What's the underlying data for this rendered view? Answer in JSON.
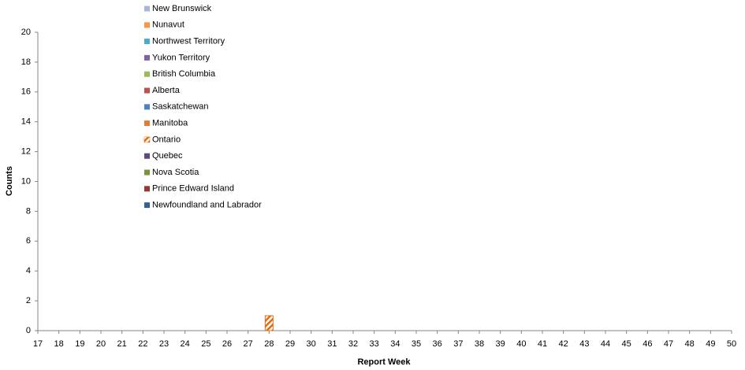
{
  "chart_data": {
    "type": "bar",
    "stacked": true,
    "x_label": "Report Week",
    "y_label": "Counts",
    "categories": [
      "17",
      "18",
      "19",
      "20",
      "21",
      "22",
      "23",
      "24",
      "25",
      "26",
      "27",
      "28",
      "29",
      "30",
      "31",
      "32",
      "33",
      "34",
      "35",
      "36",
      "37",
      "38",
      "39",
      "40",
      "41",
      "42",
      "43",
      "44",
      "45",
      "46",
      "47",
      "48",
      "49",
      "50"
    ],
    "ylim": [
      0,
      20
    ],
    "yticks": [
      0,
      2,
      4,
      6,
      8,
      10,
      12,
      14,
      16,
      18,
      20
    ],
    "grid": false,
    "series": [
      {
        "name": "New Brunswick",
        "color": "#a6b8d6",
        "values": [
          0,
          0,
          0,
          0,
          0,
          0,
          0,
          0,
          0,
          0,
          0,
          0,
          0,
          0,
          0,
          0,
          0,
          0,
          0,
          0,
          0,
          0,
          0,
          0,
          0,
          0,
          0,
          0,
          0,
          0,
          0,
          0,
          0,
          0
        ]
      },
      {
        "name": "Nunavut",
        "color": "#f79646",
        "values": [
          0,
          0,
          0,
          0,
          0,
          0,
          0,
          0,
          0,
          0,
          0,
          0,
          0,
          0,
          0,
          0,
          0,
          0,
          0,
          0,
          0,
          0,
          0,
          0,
          0,
          0,
          0,
          0,
          0,
          0,
          0,
          0,
          0,
          0
        ]
      },
      {
        "name": "Northwest Territory",
        "color": "#4bacc6",
        "values": [
          0,
          0,
          0,
          0,
          0,
          0,
          0,
          0,
          0,
          0,
          0,
          0,
          0,
          0,
          0,
          0,
          0,
          0,
          0,
          0,
          0,
          0,
          0,
          0,
          0,
          0,
          0,
          0,
          0,
          0,
          0,
          0,
          0,
          0
        ]
      },
      {
        "name": "Yukon Territory",
        "color": "#8064a2",
        "values": [
          0,
          0,
          0,
          0,
          0,
          0,
          0,
          0,
          0,
          0,
          0,
          0,
          0,
          0,
          0,
          0,
          0,
          0,
          0,
          0,
          0,
          0,
          0,
          0,
          0,
          0,
          0,
          0,
          0,
          0,
          0,
          0,
          0,
          0
        ]
      },
      {
        "name": "British Columbia",
        "color": "#9bbb59",
        "values": [
          0,
          0,
          0,
          0,
          0,
          0,
          0,
          0,
          0,
          0,
          0,
          0,
          0,
          0,
          0,
          0,
          0,
          0,
          0,
          0,
          0,
          0,
          0,
          0,
          0,
          0,
          0,
          0,
          0,
          0,
          0,
          0,
          0,
          0
        ]
      },
      {
        "name": "Alberta",
        "color": "#c0504d",
        "values": [
          0,
          0,
          0,
          0,
          0,
          0,
          0,
          0,
          0,
          0,
          0,
          0,
          0,
          0,
          0,
          0,
          0,
          0,
          0,
          0,
          0,
          0,
          0,
          0,
          0,
          0,
          0,
          0,
          0,
          0,
          0,
          0,
          0,
          0
        ]
      },
      {
        "name": "Saskatchewan",
        "color": "#4f81bd",
        "values": [
          0,
          0,
          0,
          0,
          0,
          0,
          0,
          0,
          0,
          0,
          0,
          0,
          0,
          0,
          0,
          0,
          0,
          0,
          0,
          0,
          0,
          0,
          0,
          0,
          0,
          0,
          0,
          0,
          0,
          0,
          0,
          0,
          0,
          0
        ]
      },
      {
        "name": "Manitoba",
        "color": "#e07b39",
        "values": [
          0,
          0,
          0,
          0,
          0,
          0,
          0,
          0,
          0,
          0,
          0,
          0,
          0,
          0,
          0,
          0,
          0,
          0,
          0,
          0,
          0,
          0,
          0,
          0,
          0,
          0,
          0,
          0,
          0,
          0,
          0,
          0,
          0,
          0
        ]
      },
      {
        "name": "Ontario",
        "color": "#e46c0a",
        "hatch": true,
        "values": [
          0,
          0,
          0,
          0,
          0,
          0,
          0,
          0,
          0,
          0,
          0,
          1,
          0,
          0,
          0,
          0,
          0,
          0,
          0,
          0,
          0,
          0,
          0,
          0,
          0,
          0,
          0,
          0,
          0,
          0,
          0,
          0,
          0,
          0
        ]
      },
      {
        "name": "Quebec",
        "color": "#604a7b",
        "values": [
          0,
          0,
          0,
          0,
          0,
          0,
          0,
          0,
          0,
          0,
          0,
          0,
          0,
          0,
          0,
          0,
          0,
          0,
          0,
          0,
          0,
          0,
          0,
          0,
          0,
          0,
          0,
          0,
          0,
          0,
          0,
          0,
          0,
          0
        ]
      },
      {
        "name": "Nova Scotia",
        "color": "#77933c",
        "values": [
          0,
          0,
          0,
          0,
          0,
          0,
          0,
          0,
          0,
          0,
          0,
          0,
          0,
          0,
          0,
          0,
          0,
          0,
          0,
          0,
          0,
          0,
          0,
          0,
          0,
          0,
          0,
          0,
          0,
          0,
          0,
          0,
          0,
          0
        ]
      },
      {
        "name": "Prince Edward Island",
        "color": "#953735",
        "values": [
          0,
          0,
          0,
          0,
          0,
          0,
          0,
          0,
          0,
          0,
          0,
          0,
          0,
          0,
          0,
          0,
          0,
          0,
          0,
          0,
          0,
          0,
          0,
          0,
          0,
          0,
          0,
          0,
          0,
          0,
          0,
          0,
          0,
          0
        ]
      },
      {
        "name": "Newfoundland and Labrador",
        "color": "#376092",
        "values": [
          0,
          0,
          0,
          0,
          0,
          0,
          0,
          0,
          0,
          0,
          0,
          0,
          0,
          0,
          0,
          0,
          0,
          0,
          0,
          0,
          0,
          0,
          0,
          0,
          0,
          0,
          0,
          0,
          0,
          0,
          0,
          0,
          0,
          0
        ]
      }
    ]
  }
}
